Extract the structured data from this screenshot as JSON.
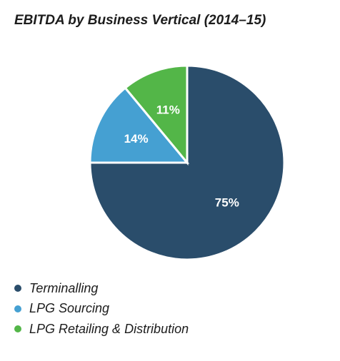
{
  "chart_data": {
    "type": "pie",
    "title": "EBITDA by Business Vertical (2014–15)",
    "categories": [
      "Terminalling",
      "LPG Sourcing",
      "LPG Retailing & Distribution"
    ],
    "values": [
      75,
      14,
      11
    ],
    "data_labels": [
      "75%",
      "14%",
      "11%"
    ],
    "colors": [
      "#2a4d6b",
      "#45a0d2",
      "#53b648"
    ],
    "legend_position": "bottom-left"
  }
}
